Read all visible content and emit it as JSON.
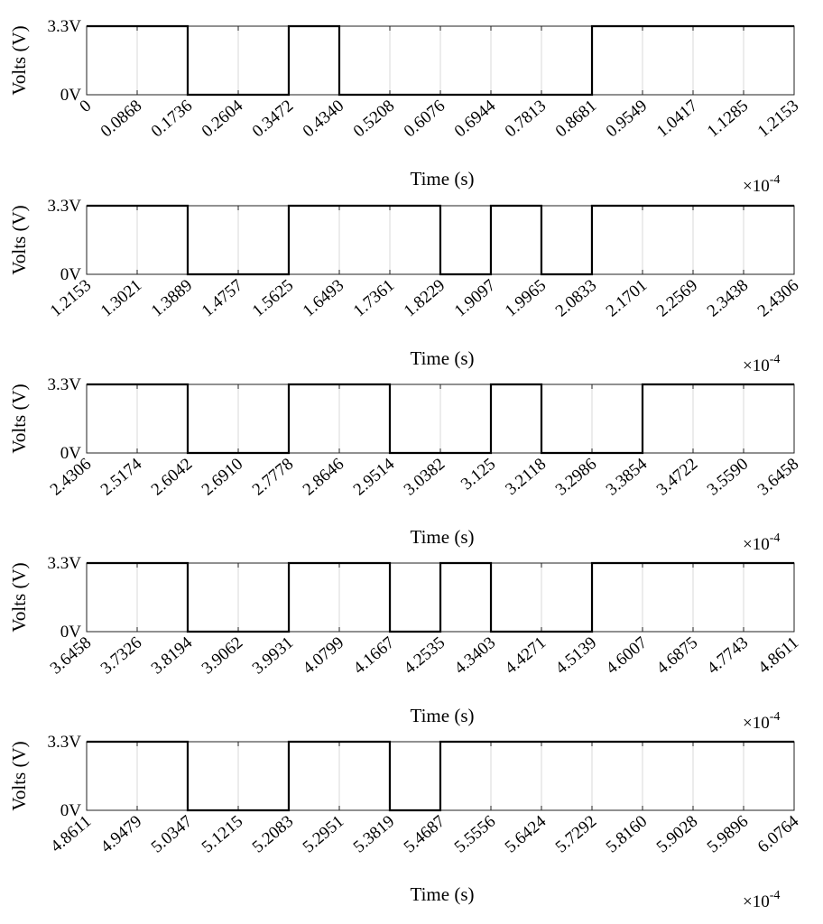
{
  "chart_data": [
    {
      "type": "line",
      "step": "post",
      "xlabel": "Time (s)",
      "ylabel": "Volts (V)",
      "x_multiplier": "×10",
      "x_exponent": "-4",
      "xlim": [
        0,
        1.2153
      ],
      "ylim": [
        0,
        3.3
      ],
      "ytick_labels": [
        "0V",
        "3.3V"
      ],
      "xtick_labels": [
        "0",
        "0.0868",
        "0.1736",
        "0.2604",
        "0.3472",
        "0.4340",
        "0.5208",
        "0.6076",
        "0.6944",
        "0.7813",
        "0.8681",
        "0.9549",
        "1.0417",
        "1.1285",
        "1.2153"
      ],
      "grid": true,
      "series": [
        {
          "x": [
            0,
            0.1736,
            0.3472,
            0.434,
            0.8681,
            1.2153
          ],
          "y": [
            3.3,
            0,
            3.3,
            0,
            3.3,
            3.3
          ]
        }
      ]
    },
    {
      "type": "line",
      "step": "post",
      "xlabel": "Time (s)",
      "ylabel": "Volts (V)",
      "x_multiplier": "×10",
      "x_exponent": "-4",
      "xlim": [
        1.2153,
        2.4306
      ],
      "ylim": [
        0,
        3.3
      ],
      "ytick_labels": [
        "0V",
        "3.3V"
      ],
      "xtick_labels": [
        "1.2153",
        "1.3021",
        "1.3889",
        "1.4757",
        "1.5625",
        "1.6493",
        "1.7361",
        "1.8229",
        "1.9097",
        "1.9965",
        "2.0833",
        "2.1701",
        "2.2569",
        "2.3438",
        "2.4306"
      ],
      "grid": true,
      "series": [
        {
          "x": [
            1.2153,
            1.3889,
            1.5625,
            1.8229,
            1.9097,
            1.9965,
            2.0833,
            2.4306
          ],
          "y": [
            3.3,
            0,
            3.3,
            0,
            3.3,
            0,
            3.3,
            3.3
          ]
        }
      ]
    },
    {
      "type": "line",
      "step": "post",
      "xlabel": "Time (s)",
      "ylabel": "Volts (V)",
      "x_multiplier": "×10",
      "x_exponent": "-4",
      "xlim": [
        2.4306,
        3.6458
      ],
      "ylim": [
        0,
        3.3
      ],
      "ytick_labels": [
        "0V",
        "3.3V"
      ],
      "xtick_labels": [
        "2.4306",
        "2.5174",
        "2.6042",
        "2.6910",
        "2.7778",
        "2.8646",
        "2.9514",
        "3.0382",
        "3.125",
        "3.2118",
        "3.2986",
        "3.3854",
        "3.4722",
        "3.5590",
        "3.6458"
      ],
      "grid": true,
      "series": [
        {
          "x": [
            2.4306,
            2.6042,
            2.7778,
            2.9514,
            3.125,
            3.2118,
            3.3854,
            3.6458
          ],
          "y": [
            3.3,
            0,
            3.3,
            0,
            3.3,
            0,
            3.3,
            3.3
          ]
        }
      ]
    },
    {
      "type": "line",
      "step": "post",
      "xlabel": "Time (s)",
      "ylabel": "Volts (V)",
      "x_multiplier": "×10",
      "x_exponent": "-4",
      "xlim": [
        3.6458,
        4.8611
      ],
      "ylim": [
        0,
        3.3
      ],
      "ytick_labels": [
        "0V",
        "3.3V"
      ],
      "xtick_labels": [
        "3.6458",
        "3.7326",
        "3.8194",
        "3.9062",
        "3.9931",
        "4.0799",
        "4.1667",
        "4.2535",
        "4.3403",
        "4.4271",
        "4.5139",
        "4.6007",
        "4.6875",
        "4.7743",
        "4.8611"
      ],
      "grid": true,
      "series": [
        {
          "x": [
            3.6458,
            3.8194,
            3.9931,
            4.1667,
            4.2535,
            4.3403,
            4.5139,
            4.8611
          ],
          "y": [
            3.3,
            0,
            3.3,
            0,
            3.3,
            0,
            3.3,
            3.3
          ]
        }
      ]
    },
    {
      "type": "line",
      "step": "post",
      "xlabel": "Time (s)",
      "ylabel": "Volts (V)",
      "x_multiplier": "×10",
      "x_exponent": "-4",
      "xlim": [
        4.8611,
        6.0764
      ],
      "ylim": [
        0,
        3.3
      ],
      "ytick_labels": [
        "0V",
        "3.3V"
      ],
      "xtick_labels": [
        "4.8611",
        "4.9479",
        "5.0347",
        "5.1215",
        "5.2083",
        "5.2951",
        "5.3819",
        "5.4687",
        "5.5556",
        "5.6424",
        "5.7292",
        "5.8160",
        "5.9028",
        "5.9896",
        "6.0764"
      ],
      "grid": true,
      "series": [
        {
          "x": [
            4.8611,
            5.0347,
            5.2083,
            5.3819,
            5.4687,
            6.0764
          ],
          "y": [
            3.3,
            0,
            3.3,
            0,
            3.3,
            3.3
          ]
        }
      ]
    }
  ]
}
